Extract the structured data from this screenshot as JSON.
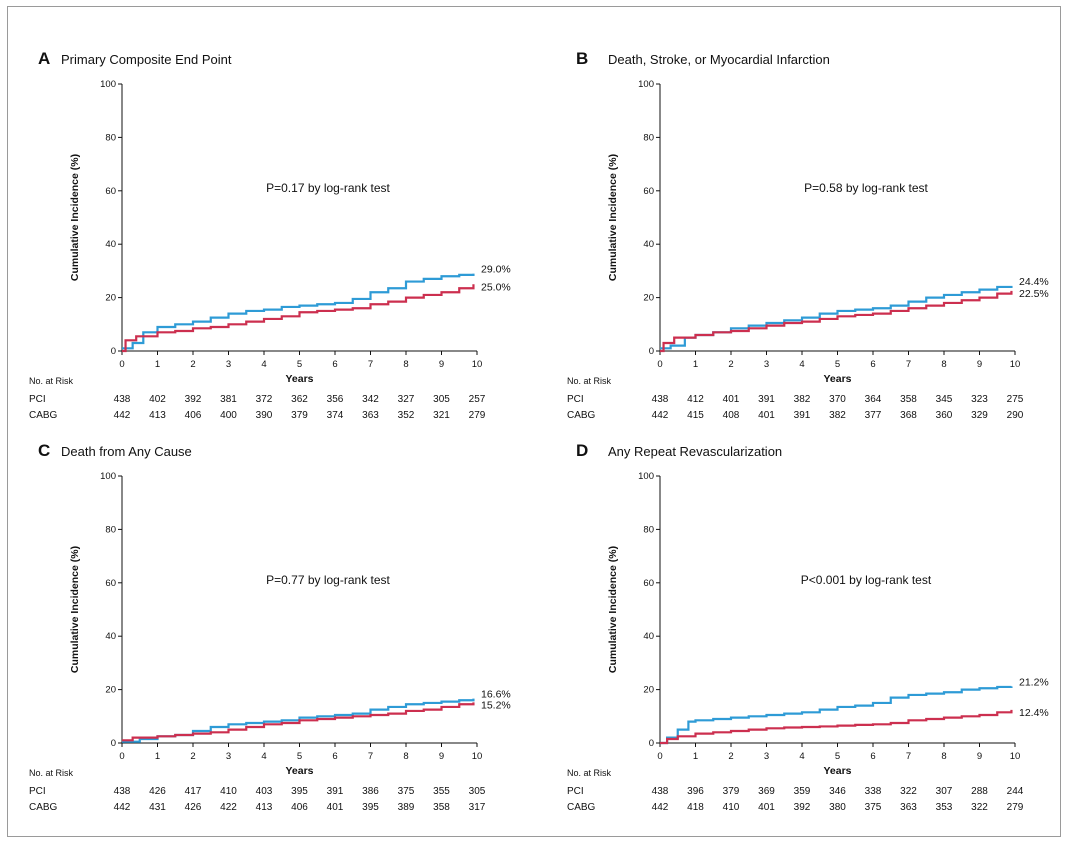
{
  "colors": {
    "pci": "#2e9bd6",
    "cabg": "#cc2f4f"
  },
  "x_axis_label": "Years",
  "y_axis_label": "Cumulative Incidence (%)",
  "risk_header": "No. at Risk",
  "pci_label": "PCI",
  "cabg_label": "CABG",
  "chart_data": [
    {
      "type": "line",
      "letter": "A",
      "title": "Primary Composite End Point",
      "pvalue_text": "P=0.17 by log-rank test",
      "xlabel": "Years",
      "ylabel": "Cumulative Incidence (%)",
      "xlim": [
        0,
        10
      ],
      "ylim": [
        0,
        100
      ],
      "x_ticks": [
        "0",
        "1",
        "2",
        "3",
        "4",
        "5",
        "6",
        "7",
        "8",
        "9",
        "10"
      ],
      "y_ticks": [
        "0",
        "20",
        "40",
        "60",
        "80",
        "100"
      ],
      "series": [
        {
          "name": "PCI",
          "end_label": "29.0%",
          "x": [
            0,
            0.3,
            0.6,
            1,
            1.5,
            2,
            2.5,
            3,
            3.5,
            4,
            4.5,
            5,
            5.5,
            6,
            6.5,
            7,
            7.5,
            8,
            8.5,
            9,
            9.5,
            9.9
          ],
          "y": [
            1,
            3,
            7,
            9,
            10,
            11,
            12.5,
            14,
            15,
            15.5,
            16.5,
            17,
            17.5,
            18,
            19.5,
            22,
            23.5,
            26,
            27,
            28,
            28.5,
            29
          ]
        },
        {
          "name": "CABG",
          "end_label": "25.0%",
          "x": [
            0,
            0.1,
            0.4,
            1,
            1.5,
            2,
            2.5,
            3,
            3.5,
            4,
            4.5,
            5,
            5.5,
            6,
            6.5,
            7,
            7.5,
            8,
            8.5,
            9,
            9.5,
            9.9
          ],
          "y": [
            0,
            4,
            5.5,
            7,
            7.5,
            8.5,
            9,
            10,
            11,
            12,
            13,
            14.5,
            15,
            15.5,
            16,
            17.5,
            18.5,
            20,
            21,
            22,
            23.5,
            25
          ]
        }
      ],
      "risk_table": [
        {
          "name": "PCI",
          "values": [
            "438",
            "402",
            "392",
            "381",
            "372",
            "362",
            "356",
            "342",
            "327",
            "305",
            "257"
          ]
        },
        {
          "name": "CABG",
          "values": [
            "442",
            "413",
            "406",
            "400",
            "390",
            "379",
            "374",
            "363",
            "352",
            "321",
            "279"
          ]
        }
      ]
    },
    {
      "type": "line",
      "letter": "B",
      "title": "Death, Stroke, or Myocardial Infarction",
      "pvalue_text": "P=0.58 by log-rank test",
      "xlabel": "Years",
      "ylabel": "Cumulative Incidence (%)",
      "xlim": [
        0,
        10
      ],
      "ylim": [
        0,
        100
      ],
      "x_ticks": [
        "0",
        "1",
        "2",
        "3",
        "4",
        "5",
        "6",
        "7",
        "8",
        "9",
        "10"
      ],
      "y_ticks": [
        "0",
        "20",
        "40",
        "60",
        "80",
        "100"
      ],
      "series": [
        {
          "name": "PCI",
          "end_label": "24.4%",
          "x": [
            0,
            0.3,
            0.7,
            1,
            1.5,
            2,
            2.5,
            3,
            3.5,
            4,
            4.5,
            5,
            5.5,
            6,
            6.5,
            7,
            7.5,
            8,
            8.5,
            9,
            9.5,
            9.9
          ],
          "y": [
            1,
            2,
            5,
            6,
            7,
            8.5,
            9.5,
            10.5,
            11.5,
            12.5,
            14,
            15,
            15.5,
            16,
            17,
            18.5,
            20,
            21,
            22,
            23,
            24,
            24.4
          ]
        },
        {
          "name": "CABG",
          "end_label": "22.5%",
          "x": [
            0,
            0.1,
            0.4,
            1,
            1.5,
            2,
            2.5,
            3,
            3.5,
            4,
            4.5,
            5,
            5.5,
            6,
            6.5,
            7,
            7.5,
            8,
            8.5,
            9,
            9.5,
            9.9
          ],
          "y": [
            0,
            3,
            5,
            6,
            7,
            7.5,
            8.5,
            9.5,
            10.5,
            11,
            12,
            13,
            13.5,
            14,
            15,
            16,
            17,
            18,
            19,
            20,
            21.5,
            22.5
          ]
        }
      ],
      "risk_table": [
        {
          "name": "PCI",
          "values": [
            "438",
            "412",
            "401",
            "391",
            "382",
            "370",
            "364",
            "358",
            "345",
            "323",
            "275"
          ]
        },
        {
          "name": "CABG",
          "values": [
            "442",
            "415",
            "408",
            "401",
            "391",
            "382",
            "377",
            "368",
            "360",
            "329",
            "290"
          ]
        }
      ]
    },
    {
      "type": "line",
      "letter": "C",
      "title": "Death from Any Cause",
      "pvalue_text": "P=0.77 by log-rank test",
      "xlabel": "Years",
      "ylabel": "Cumulative Incidence (%)",
      "xlim": [
        0,
        10
      ],
      "ylim": [
        0,
        100
      ],
      "x_ticks": [
        "0",
        "1",
        "2",
        "3",
        "4",
        "5",
        "6",
        "7",
        "8",
        "9",
        "10"
      ],
      "y_ticks": [
        "0",
        "20",
        "40",
        "60",
        "80",
        "100"
      ],
      "series": [
        {
          "name": "PCI",
          "end_label": "16.6%",
          "x": [
            0,
            0.5,
            1,
            1.5,
            2,
            2.5,
            3,
            3.5,
            4,
            4.5,
            5,
            5.5,
            6,
            6.5,
            7,
            7.5,
            8,
            8.5,
            9,
            9.5,
            9.9
          ],
          "y": [
            0.5,
            1.5,
            2.5,
            3,
            4.5,
            6,
            7,
            7.5,
            8,
            8.5,
            9.5,
            10,
            10.5,
            11,
            12.5,
            13.5,
            14.5,
            15,
            15.5,
            16,
            16.6
          ]
        },
        {
          "name": "CABG",
          "end_label": "15.2%",
          "x": [
            0,
            0.3,
            1,
            1.5,
            2,
            2.5,
            3,
            3.5,
            4,
            4.5,
            5,
            5.5,
            6,
            6.5,
            7,
            7.5,
            8,
            8.5,
            9,
            9.5,
            9.9
          ],
          "y": [
            1,
            2,
            2.5,
            3,
            3.5,
            4,
            5,
            6,
            7,
            7.5,
            8.5,
            9,
            9.5,
            10,
            10.5,
            11,
            12,
            12.5,
            13.5,
            14.5,
            15.2
          ]
        }
      ],
      "risk_table": [
        {
          "name": "PCI",
          "values": [
            "438",
            "426",
            "417",
            "410",
            "403",
            "395",
            "391",
            "386",
            "375",
            "355",
            "305"
          ]
        },
        {
          "name": "CABG",
          "values": [
            "442",
            "431",
            "426",
            "422",
            "413",
            "406",
            "401",
            "395",
            "389",
            "358",
            "317"
          ]
        }
      ]
    },
    {
      "type": "line",
      "letter": "D",
      "title": "Any Repeat Revascularization",
      "pvalue_text": "P<0.001 by log-rank test",
      "xlabel": "Years",
      "ylabel": "Cumulative Incidence (%)",
      "xlim": [
        0,
        10
      ],
      "ylim": [
        0,
        100
      ],
      "x_ticks": [
        "0",
        "1",
        "2",
        "3",
        "4",
        "5",
        "6",
        "7",
        "8",
        "9",
        "10"
      ],
      "y_ticks": [
        "0",
        "20",
        "40",
        "60",
        "80",
        "100"
      ],
      "series": [
        {
          "name": "PCI",
          "end_label": "21.2%",
          "x": [
            0,
            0.2,
            0.5,
            0.8,
            1,
            1.5,
            2,
            2.5,
            3,
            3.5,
            4,
            4.5,
            5,
            5.5,
            6,
            6.5,
            7,
            7.5,
            8,
            8.5,
            9,
            9.5,
            9.9
          ],
          "y": [
            0,
            2,
            5,
            8,
            8.5,
            9,
            9.5,
            10,
            10.5,
            11,
            11.5,
            12.5,
            13.5,
            14,
            15,
            17,
            18,
            18.5,
            19,
            20,
            20.5,
            21,
            21.2
          ]
        },
        {
          "name": "CABG",
          "end_label": "12.4%",
          "x": [
            0,
            0.2,
            0.5,
            1,
            1.5,
            2,
            2.5,
            3,
            3.5,
            4,
            4.5,
            5,
            5.5,
            6,
            6.5,
            7,
            7.5,
            8,
            8.5,
            9,
            9.5,
            9.9
          ],
          "y": [
            0,
            1.5,
            2.5,
            3.5,
            4,
            4.5,
            5,
            5.5,
            5.8,
            6,
            6.2,
            6.5,
            6.8,
            7,
            7.5,
            8.5,
            9,
            9.5,
            10,
            10.5,
            11.5,
            12.4
          ]
        }
      ],
      "risk_table": [
        {
          "name": "PCI",
          "values": [
            "438",
            "396",
            "379",
            "369",
            "359",
            "346",
            "338",
            "322",
            "307",
            "288",
            "244"
          ]
        },
        {
          "name": "CABG",
          "values": [
            "442",
            "418",
            "410",
            "401",
            "392",
            "380",
            "375",
            "363",
            "353",
            "322",
            "279"
          ]
        }
      ]
    }
  ]
}
